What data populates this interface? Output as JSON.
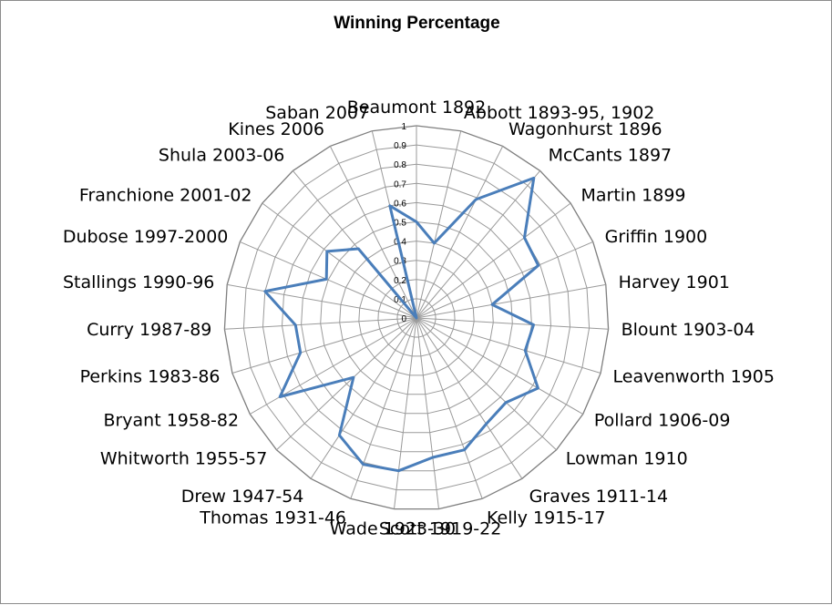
{
  "chart_data": {
    "type": "radar",
    "title": "Winning Percentage",
    "categories": [
      "Beaumont 1892",
      "Abbott 1893-95, 1902",
      "Wagonhurst 1896",
      "McCants 1897",
      "Martin 1899",
      "Griffin 1900",
      "Harvey 1901",
      "Blount 1903-04",
      "Leavenworth 1905",
      "Pollard 1906-09",
      "Lowman 1910",
      "Graves 1911-14",
      "Kelly 1915-17",
      "Scott 1919-22",
      "Wade 1923-30",
      "Thomas 1931-46",
      "Drew 1947-54",
      "Whitworth 1955-57",
      "Bryant 1958-82",
      "Perkins 1983-86",
      "Curry 1987-89",
      "Stallings 1990-96",
      "Dubose 1997-2000",
      "Franchione 2001-02",
      "Shula 2003-06",
      "Kines 2006",
      "Saban 2007"
    ],
    "series": [
      {
        "values": [
          0.5,
          0.4,
          0.69,
          0.95,
          0.7,
          0.69,
          0.4,
          0.61,
          0.59,
          0.73,
          0.64,
          0.66,
          0.73,
          0.73,
          0.8,
          0.81,
          0.73,
          0.45,
          0.82,
          0.63,
          0.63,
          0.8,
          0.51,
          0.58,
          0.47,
          0.0,
          0.6
        ],
        "color": "#4a7eba"
      }
    ],
    "rlim": [
      0,
      1
    ],
    "ticks": [
      "0",
      "0.1",
      "0.2",
      "0.3",
      "0.4",
      "0.5",
      "0.6",
      "0.7",
      "0.8",
      "0.9",
      "1"
    ],
    "grid": true,
    "legend": "none"
  }
}
